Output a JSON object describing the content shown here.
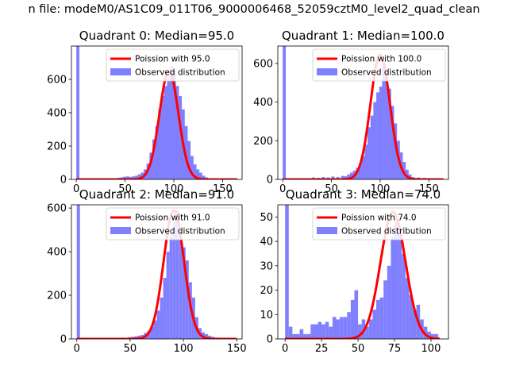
{
  "figure_title": "n file: modeM0/AS1C09_011T06_9000006468_52059cztM0_level2_quad_clean",
  "colors": {
    "poisson_line": "#ff0000",
    "observed_bars": "#8080ff",
    "axes": "#000000"
  },
  "chart_data": [
    {
      "type": "bar",
      "title": "Quadrant 0: Median=95.0",
      "xlim": [
        -5,
        170
      ],
      "ylim": [
        0,
        800
      ],
      "xticks": [
        0,
        50,
        100,
        150
      ],
      "yticks": [
        0,
        200,
        400,
        600
      ],
      "legend": {
        "placement": "top-right",
        "entries": [
          "Poission with 95.0",
          "Observed distribution"
        ]
      },
      "bin_width": 3.2,
      "bins": [
        [
          0,
          800
        ],
        [
          42,
          10
        ],
        [
          45,
          12
        ],
        [
          48,
          16
        ],
        [
          51,
          18
        ],
        [
          54,
          15
        ],
        [
          57,
          18
        ],
        [
          60,
          22
        ],
        [
          63,
          30
        ],
        [
          66,
          40
        ],
        [
          69,
          60
        ],
        [
          72,
          95
        ],
        [
          75,
          160
        ],
        [
          78,
          240
        ],
        [
          81,
          320
        ],
        [
          84,
          420
        ],
        [
          87,
          500
        ],
        [
          90,
          560
        ],
        [
          93,
          610
        ],
        [
          96,
          680
        ],
        [
          99,
          650
        ],
        [
          102,
          560
        ],
        [
          105,
          500
        ],
        [
          108,
          420
        ],
        [
          111,
          320
        ],
        [
          114,
          230
        ],
        [
          117,
          140
        ],
        [
          120,
          90
        ],
        [
          123,
          60
        ],
        [
          126,
          40
        ],
        [
          129,
          22
        ],
        [
          132,
          12
        ],
        [
          135,
          6
        ]
      ],
      "poisson_mean": 95.0,
      "poisson_peak": 650,
      "poisson_range": [
        0,
        165
      ]
    },
    {
      "type": "bar",
      "title": "Quadrant 1: Median=100.0",
      "xlim": [
        -5,
        170
      ],
      "ylim": [
        0,
        690
      ],
      "xticks": [
        0,
        50,
        100,
        150
      ],
      "yticks": [
        0,
        200,
        400,
        600
      ],
      "legend": {
        "placement": "top-right",
        "entries": [
          "Poission with 100.0",
          "Observed distribution"
        ]
      },
      "bin_width": 3.2,
      "bins": [
        [
          0,
          690
        ],
        [
          30,
          10
        ],
        [
          35,
          8
        ],
        [
          40,
          12
        ],
        [
          45,
          10
        ],
        [
          50,
          15
        ],
        [
          55,
          12
        ],
        [
          60,
          18
        ],
        [
          63,
          16
        ],
        [
          66,
          25
        ],
        [
          69,
          35
        ],
        [
          72,
          45
        ],
        [
          75,
          60
        ],
        [
          78,
          80
        ],
        [
          81,
          120
        ],
        [
          84,
          180
        ],
        [
          87,
          270
        ],
        [
          90,
          330
        ],
        [
          93,
          400
        ],
        [
          96,
          450
        ],
        [
          99,
          480
        ],
        [
          102,
          590
        ],
        [
          105,
          560
        ],
        [
          108,
          470
        ],
        [
          111,
          380
        ],
        [
          114,
          290
        ],
        [
          117,
          200
        ],
        [
          120,
          140
        ],
        [
          123,
          90
        ],
        [
          126,
          50
        ],
        [
          129,
          25
        ],
        [
          132,
          12
        ],
        [
          138,
          10
        ],
        [
          144,
          8
        ]
      ],
      "poisson_mean": 100.0,
      "poisson_peak": 645,
      "poisson_range": [
        0,
        165
      ]
    },
    {
      "type": "bar",
      "title": "Quadrant 2: Median=91.0",
      "xlim": [
        -5,
        155
      ],
      "ylim": [
        0,
        615
      ],
      "xticks": [
        0,
        50,
        100,
        150
      ],
      "yticks": [
        0,
        200,
        400,
        600
      ],
      "legend": {
        "placement": "top-right",
        "entries": [
          "Poission with 91.0",
          "Observed distribution"
        ]
      },
      "bin_width": 3.0,
      "bins": [
        [
          0,
          615
        ],
        [
          45,
          5
        ],
        [
          48,
          8
        ],
        [
          51,
          10
        ],
        [
          54,
          12
        ],
        [
          57,
          15
        ],
        [
          60,
          18
        ],
        [
          63,
          28
        ],
        [
          66,
          38
        ],
        [
          69,
          55
        ],
        [
          72,
          85
        ],
        [
          75,
          130
        ],
        [
          78,
          190
        ],
        [
          81,
          280
        ],
        [
          84,
          400
        ],
        [
          87,
          470
        ],
        [
          90,
          540
        ],
        [
          93,
          590
        ],
        [
          96,
          480
        ],
        [
          99,
          420
        ],
        [
          102,
          360
        ],
        [
          105,
          260
        ],
        [
          108,
          190
        ],
        [
          111,
          100
        ],
        [
          114,
          50
        ],
        [
          117,
          30
        ],
        [
          120,
          22
        ],
        [
          123,
          15
        ],
        [
          126,
          10
        ],
        [
          130,
          6
        ]
      ],
      "poisson_mean": 91.0,
      "poisson_peak": 590,
      "poisson_range": [
        0,
        150
      ]
    },
    {
      "type": "bar",
      "title": "Quadrant 3: Median=74.0",
      "xlim": [
        -5,
        112
      ],
      "ylim": [
        0,
        55
      ],
      "xticks": [
        0,
        25,
        50,
        75,
        100
      ],
      "yticks": [
        0,
        10,
        20,
        30,
        40,
        50
      ],
      "legend": {
        "placement": "top-right",
        "entries": [
          "Poission with 74.0",
          "Observed distribution"
        ]
      },
      "bin_width": 2.5,
      "bins": [
        [
          0,
          55
        ],
        [
          2.5,
          5
        ],
        [
          5,
          2
        ],
        [
          7.5,
          2
        ],
        [
          10,
          4
        ],
        [
          12.5,
          2
        ],
        [
          15,
          2
        ],
        [
          17.5,
          6
        ],
        [
          20,
          6
        ],
        [
          22.5,
          7
        ],
        [
          25,
          6
        ],
        [
          27.5,
          7
        ],
        [
          30,
          5
        ],
        [
          32.5,
          9
        ],
        [
          35,
          8
        ],
        [
          37.5,
          9
        ],
        [
          40,
          9
        ],
        [
          42.5,
          11
        ],
        [
          45,
          16
        ],
        [
          47.5,
          20
        ],
        [
          50,
          6
        ],
        [
          52.5,
          8
        ],
        [
          55,
          5
        ],
        [
          57.5,
          8
        ],
        [
          60,
          12
        ],
        [
          62.5,
          16
        ],
        [
          65,
          17
        ],
        [
          67.5,
          24
        ],
        [
          70,
          30
        ],
        [
          72.5,
          42
        ],
        [
          75,
          50
        ],
        [
          77.5,
          44
        ],
        [
          80,
          35
        ],
        [
          82.5,
          25
        ],
        [
          85,
          18
        ],
        [
          87.5,
          12
        ],
        [
          90,
          14
        ],
        [
          92.5,
          8
        ],
        [
          95,
          5
        ],
        [
          97.5,
          3
        ],
        [
          100,
          2
        ],
        [
          102.5,
          2
        ]
      ],
      "poisson_mean": 74.0,
      "poisson_peak": 52,
      "poisson_range": [
        0,
        106
      ]
    }
  ]
}
